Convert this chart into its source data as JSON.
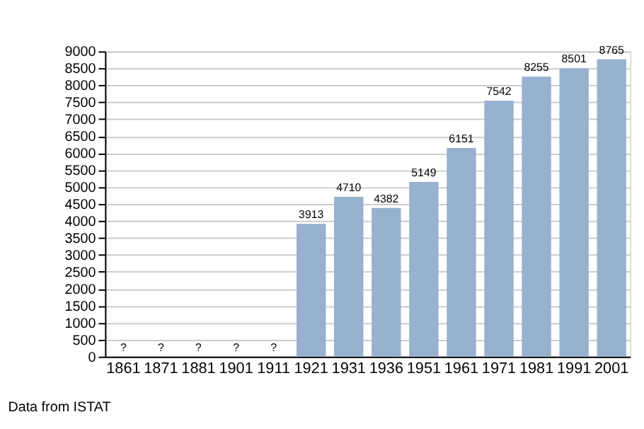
{
  "chart_data": {
    "type": "bar",
    "categories": [
      "1861",
      "1871",
      "1881",
      "1901",
      "1911",
      "1921",
      "1931",
      "1936",
      "1951",
      "1961",
      "1971",
      "1981",
      "1991",
      "2001"
    ],
    "values": [
      null,
      null,
      null,
      null,
      null,
      3913,
      4710,
      4382,
      5149,
      6151,
      7542,
      8255,
      8501,
      8765
    ],
    "value_labels": [
      "?",
      "?",
      "?",
      "?",
      "?",
      "3913",
      "4710",
      "4382",
      "5149",
      "6151",
      "7542",
      "8255",
      "8501",
      "8765"
    ],
    "color": "#97b1cf",
    "ylim": [
      0,
      9000
    ],
    "yticks": [
      0,
      500,
      1000,
      1500,
      2000,
      2500,
      3000,
      3500,
      4000,
      4500,
      5000,
      5500,
      6000,
      6500,
      7000,
      7500,
      8000,
      8500,
      9000
    ],
    "grid": true,
    "annotations": [
      "Data from ISTAT"
    ]
  }
}
